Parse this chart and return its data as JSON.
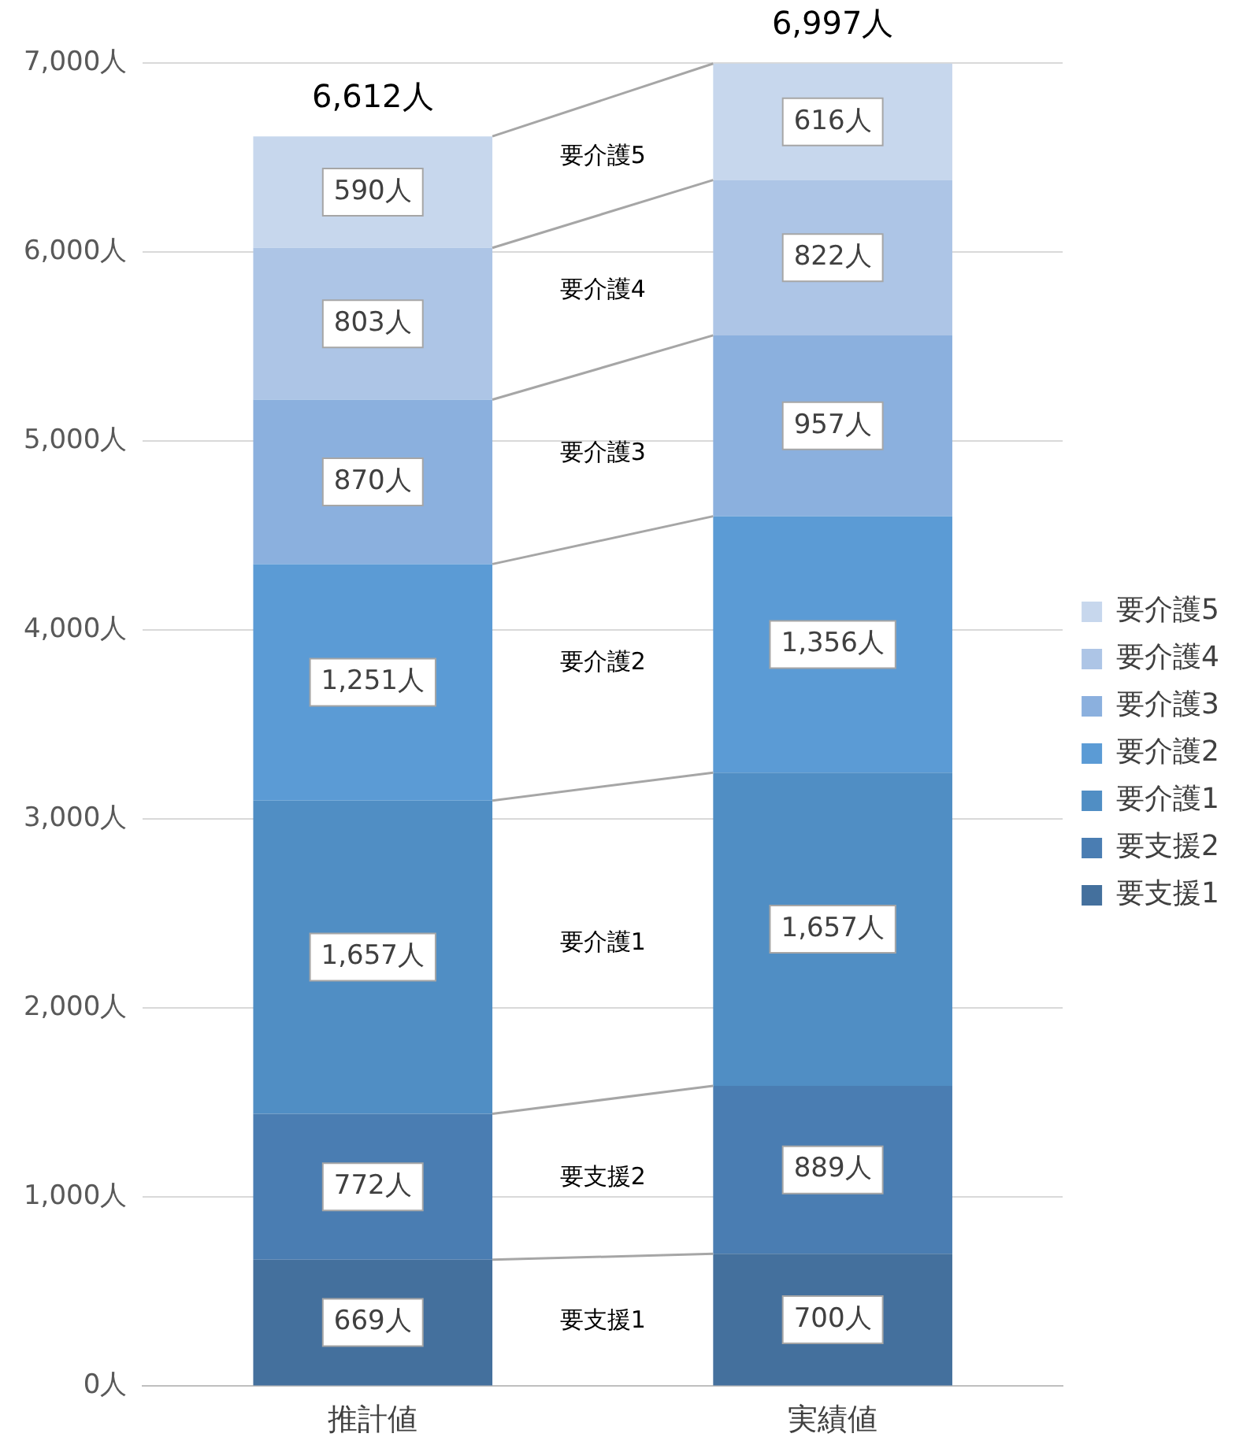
{
  "chart_data": {
    "type": "bar",
    "stacked": true,
    "categories": [
      "推計値",
      "実績値"
    ],
    "series": [
      {
        "name": "要支援1",
        "color": "#44709d",
        "values": [
          669,
          700
        ],
        "value_labels": [
          "669人",
          "700人"
        ]
      },
      {
        "name": "要支援2",
        "color": "#4a7db2",
        "values": [
          772,
          889
        ],
        "value_labels": [
          "772人",
          "889人"
        ]
      },
      {
        "name": "要介護1",
        "color": "#508ec4",
        "values": [
          1657,
          1657
        ],
        "value_labels": [
          "1,657人",
          "1,657人"
        ]
      },
      {
        "name": "要介護2",
        "color": "#5b9bd5",
        "values": [
          1251,
          1356
        ],
        "value_labels": [
          "1,251人",
          "1,356人"
        ]
      },
      {
        "name": "要介護3",
        "color": "#8bb0de",
        "values": [
          870,
          957
        ],
        "value_labels": [
          "870人",
          "957人"
        ]
      },
      {
        "name": "要介護4",
        "color": "#adc5e6",
        "values": [
          803,
          822
        ],
        "value_labels": [
          "803人",
          "822人"
        ]
      },
      {
        "name": "要介護5",
        "color": "#c7d7ed",
        "values": [
          590,
          616
        ],
        "value_labels": [
          "590人",
          "616人"
        ]
      }
    ],
    "totals": [
      "6,612人",
      "6,997人"
    ],
    "ylim": [
      0,
      7000
    ],
    "yticks": [
      {
        "value": 0,
        "label": "0人"
      },
      {
        "value": 1000,
        "label": "1,000人"
      },
      {
        "value": 2000,
        "label": "2,000人"
      },
      {
        "value": 3000,
        "label": "3,000人"
      },
      {
        "value": 4000,
        "label": "4,000人"
      },
      {
        "value": 5000,
        "label": "5,000人"
      },
      {
        "value": 6000,
        "label": "6,000人"
      },
      {
        "value": 7000,
        "label": "7,000人"
      }
    ],
    "grid": "y",
    "legend": "right"
  }
}
